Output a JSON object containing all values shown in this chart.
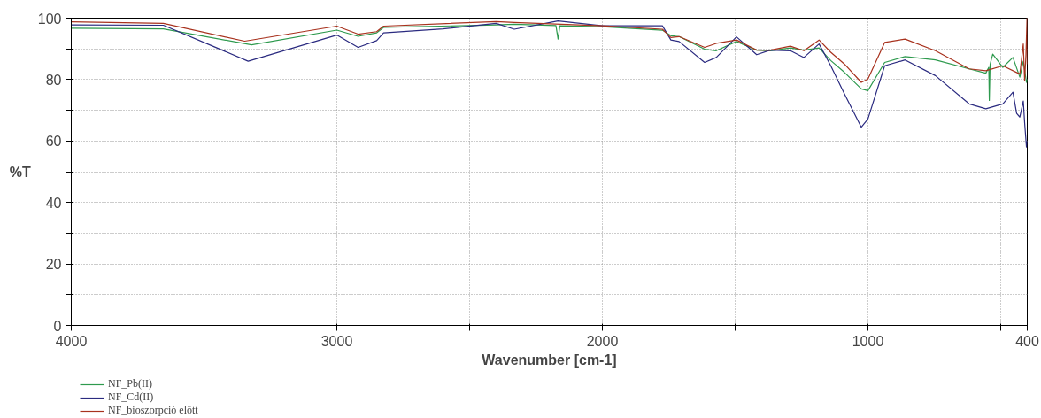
{
  "chart_data": {
    "type": "line",
    "xlabel": "Wavenumber [cm-1]",
    "ylabel": "%T",
    "xlim": [
      4000,
      400
    ],
    "ylim": [
      0,
      100
    ],
    "xticks": [
      4000,
      {
        "value": 3500,
        "label": null
      },
      3000,
      {
        "value": 2500,
        "label": null
      },
      2000,
      {
        "value": 1500,
        "label": null
      },
      1000,
      {
        "value": 500,
        "label": null
      },
      400
    ],
    "yticks": [
      0,
      {
        "value": 10,
        "label": null
      },
      20,
      {
        "value": 30,
        "label": null
      },
      40,
      {
        "value": 50,
        "label": null
      },
      60,
      {
        "value": 70,
        "label": null
      },
      80,
      {
        "value": 90,
        "label": null
      },
      100
    ],
    "grid": true,
    "legend": "bottom left",
    "marker": "none",
    "line_style": "solid",
    "series": [
      {
        "name": "NF_Pb(II)",
        "color": "#2e9a4e",
        "x": [
          4000,
          3653,
          3321,
          3000,
          2920,
          2850,
          2824,
          2400,
          2332,
          2175,
          2167,
          2160,
          2000,
          1774,
          1742,
          1711,
          1615,
          1571,
          1495,
          1419,
          1368,
          1292,
          1241,
          1184,
          1140,
          1089,
          1025,
          1000,
          937,
          860,
          746,
          619,
          556,
          545,
          543,
          540,
          530,
          492,
          454,
          428,
          415,
          403,
          400
        ],
        "values": [
          96.7,
          96.5,
          91.3,
          96.1,
          94.1,
          95.2,
          97,
          97.8,
          98,
          97.6,
          93.2,
          97.5,
          97.2,
          96.1,
          94.3,
          94,
          89.9,
          89.4,
          92.4,
          89.6,
          89.4,
          90.3,
          89.6,
          90.3,
          86.2,
          82.4,
          77,
          76.4,
          85.6,
          87.5,
          86.4,
          83.5,
          82.1,
          84,
          73.2,
          85,
          88.3,
          84,
          87.2,
          80.8,
          86,
          79.1,
          80
        ]
      },
      {
        "name": "NF_Cd(II)",
        "color": "#2b2b80",
        "x": [
          4000,
          3653,
          3334,
          3000,
          2920,
          2850,
          2824,
          2600,
          2400,
          2332,
          2167,
          2000,
          1774,
          1742,
          1711,
          1615,
          1571,
          1495,
          1419,
          1368,
          1292,
          1241,
          1184,
          1140,
          1089,
          1025,
          1000,
          937,
          860,
          746,
          619,
          556,
          492,
          454,
          440,
          428,
          415,
          410,
          403,
          400
        ],
        "values": [
          97.8,
          97.7,
          86,
          94.5,
          90.5,
          92.7,
          95.2,
          96.5,
          98.3,
          96.4,
          99.1,
          97.5,
          97.5,
          92.9,
          92.4,
          85.6,
          87.2,
          93.9,
          88.1,
          89.6,
          89.4,
          87.2,
          91.6,
          84.5,
          75.4,
          64.5,
          67.2,
          84.5,
          86.4,
          81.3,
          72.1,
          70.5,
          72.1,
          75.9,
          69,
          67.8,
          73,
          66,
          58,
          60
        ]
      },
      {
        "name": "NF_bioszorpció előtt",
        "color": "#a8321e",
        "x": [
          4000,
          3653,
          3347,
          3000,
          2920,
          2850,
          2824,
          2400,
          2332,
          2000,
          1774,
          1742,
          1711,
          1615,
          1571,
          1495,
          1419,
          1368,
          1292,
          1241,
          1184,
          1140,
          1089,
          1025,
          1000,
          937,
          860,
          746,
          619,
          556,
          492,
          428,
          415,
          410,
          405,
          401,
          400
        ],
        "values": [
          98.8,
          98.3,
          92.5,
          97.4,
          94.8,
          95.6,
          97.4,
          98.9,
          98.6,
          97.5,
          96.4,
          93.7,
          94,
          90.5,
          91.8,
          92.9,
          89.6,
          89.6,
          90.9,
          89.4,
          92.9,
          88.9,
          85.1,
          79.1,
          80.2,
          92.1,
          93.2,
          89.4,
          83.5,
          82.9,
          84.5,
          81.8,
          91.6,
          79.7,
          88,
          100,
          85
        ]
      }
    ]
  }
}
